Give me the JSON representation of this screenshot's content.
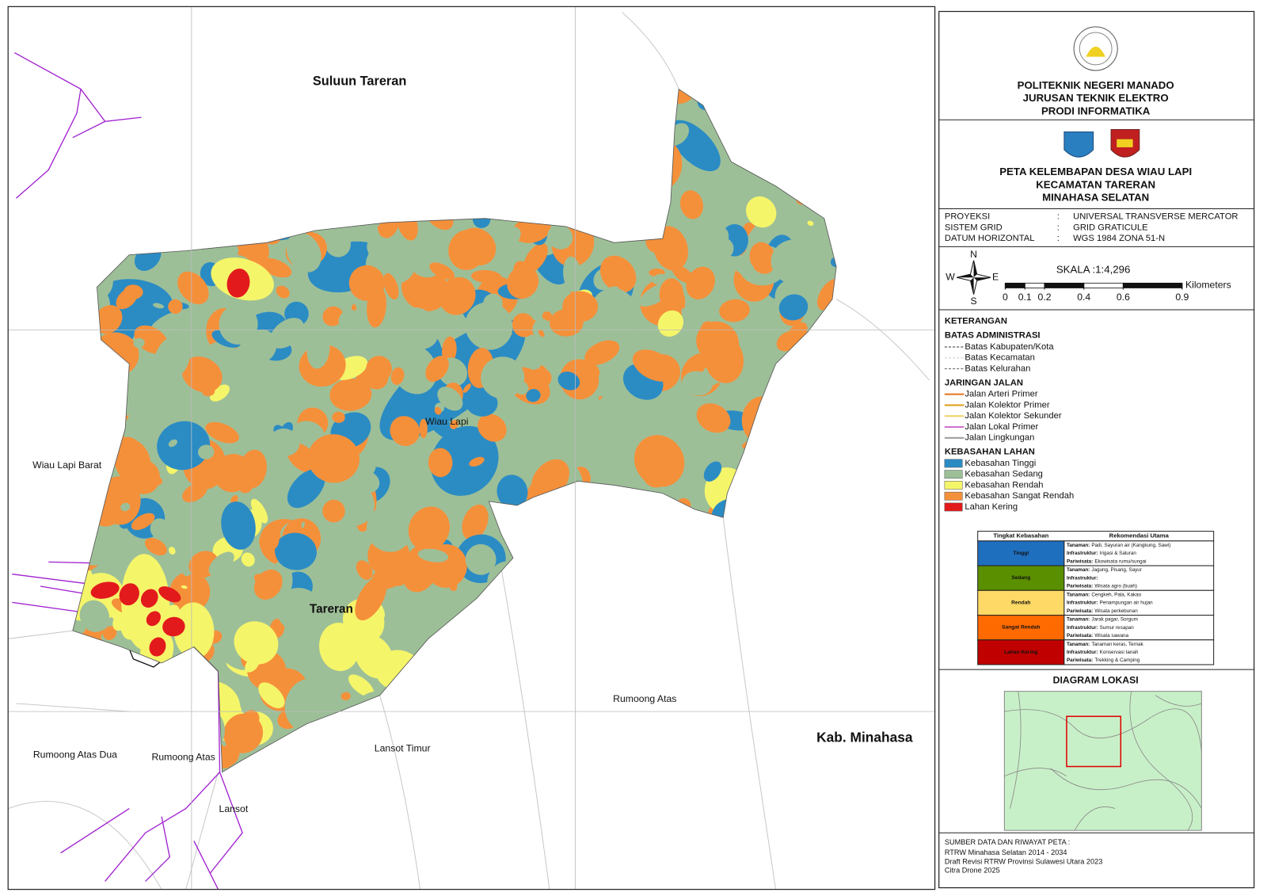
{
  "map": {
    "labels": [
      "Suluun Tareran",
      "Wiau Lapi",
      "Tareran",
      "Wiau Lapi Barat",
      "Rumoong Atas",
      "Rumoong Atas Dua",
      "Rumoong Atas",
      "Lansot Timur",
      "Lansot",
      "Kab. Minahasa"
    ]
  },
  "header": {
    "lines": [
      "POLITEKNIK NEGERI MANADO",
      "JURUSAN  TEKNIK ELEKTRO",
      "PRODI INFORMATIKA"
    ]
  },
  "title": {
    "lines": [
      "PETA KELEMBAPAN DESA WIAU LAPI",
      "KECAMATAN TARERAN",
      "MINAHASA SELATAN"
    ]
  },
  "info": [
    {
      "key": "PROYEKSI",
      "sep": ":",
      "value": "UNIVERSAL TRANSVERSE MERCATOR"
    },
    {
      "key": "SISTEM GRID",
      "sep": ":",
      "value": "GRID GRATICULE"
    },
    {
      "key": "DATUM HORIZONTAL",
      "sep": ":",
      "value": "WGS 1984 ZONA 51-N"
    }
  ],
  "compass": {
    "n": "N",
    "s": "S",
    "e": "E",
    "w": "W"
  },
  "scale": {
    "text": "SKALA :1:4,296",
    "ticks": [
      0,
      0.1,
      0.2,
      0.4,
      0.6,
      0.9
    ],
    "unit": "Kilometers"
  },
  "legend": {
    "title": "KETERANGAN",
    "groups": [
      {
        "title": "BATAS ADMINISTRASI",
        "items": [
          {
            "name": "Batas Kabupaten/Kota",
            "color": "#333333"
          },
          {
            "name": "Batas Kecamatan",
            "color": "#cccccc"
          },
          {
            "name": "Batas Kelurahan",
            "color": "#666666"
          }
        ]
      },
      {
        "title": "JARINGAN JALAN",
        "items": [
          {
            "name": "Jalan Arteri Primer",
            "color": "#e8731a"
          },
          {
            "name": "Jalan Kolektor Primer",
            "color": "#e0a020"
          },
          {
            "name": "Jalan Kolektor Sekunder",
            "color": "#f3d36a"
          },
          {
            "name": "Jalan Lokal Primer",
            "color": "#d070d0"
          },
          {
            "name": "Jalan Lingkungan",
            "color": "#999999"
          }
        ]
      },
      {
        "title": "KEBASAHAN LAHAN",
        "items": [
          {
            "name": "Kebasahan Tinggi",
            "color": "#2b8cc4"
          },
          {
            "name": "Kebasahan Sedang",
            "color": "#9dbf98"
          },
          {
            "name": "Kebasahan Rendah",
            "color": "#f5f56a"
          },
          {
            "name": "Kebasahan Sangat Rendah",
            "color": "#f5903a"
          },
          {
            "name": "Lahan Kering",
            "color": "#e31a1c"
          }
        ]
      }
    ]
  },
  "table": {
    "headers": [
      "Tingkat Kebasahan",
      "Rekomendasi Utama"
    ],
    "rows": [
      {
        "level": "Tinggi",
        "color": "#1f6fbf",
        "items": [
          {
            "label": "Tanaman:",
            "text": "Padi, Sayuran air (Kangkung, Sawi)"
          },
          {
            "label": "Infrastruktur:",
            "text": "Irigasi & Saluran"
          },
          {
            "label": "Pariwisata:",
            "text": "Ekowisata rumu/sungai"
          }
        ]
      },
      {
        "level": "Sedang",
        "color": "#5a8f00",
        "items": [
          {
            "label": "Tanaman:",
            "text": "Jagung, Pisang, Sayur"
          },
          {
            "label": "Infrastruktur:"
          },
          {
            "label": "Pariwisata:",
            "text": "Wisata agro (buah)"
          }
        ]
      },
      {
        "level": "Rendah",
        "color": "#ffd966",
        "items": [
          {
            "label": "Tanaman:",
            "text": "Cengkeh, Pala, Kakao"
          },
          {
            "label": "Infrastruktur:",
            "text": "Penampungan air hujan"
          },
          {
            "label": "Pariwisata:",
            "text": "Wisata perkebunan"
          }
        ]
      },
      {
        "level": "Sangat Rendah",
        "color": "#ff6a00",
        "items": [
          {
            "label": "Tanaman:",
            "text": "Jarak pagar, Sorgum"
          },
          {
            "label": "Infrastruktur:",
            "text": "Sumur resapan"
          },
          {
            "label": "Pariwisata:",
            "text": "Wisata sawana"
          }
        ]
      },
      {
        "level": "Lahan Kering",
        "color": "#c00000",
        "items": [
          {
            "label": "Tanaman:",
            "text": "Tanaman keras, Ternak"
          },
          {
            "label": "Infrastruktur:",
            "text": "Konservasi tanah"
          },
          {
            "label": "Pariwisata:",
            "text": "Trekking & Camping"
          }
        ]
      }
    ]
  },
  "diagram": {
    "title": "DIAGRAM LOKASI"
  },
  "sources": {
    "title": "SUMBER DATA DAN RIWAYAT PETA :",
    "lines": [
      "RTRW Minahasa Selatan 2014 - 2034",
      "Draft Revisi RTRW Provinsi Sulawesi Utara 2023",
      "Citra Drone 2025"
    ]
  }
}
